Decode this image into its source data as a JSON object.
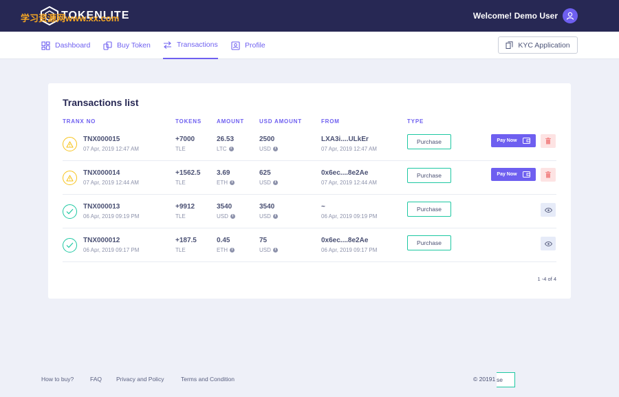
{
  "header": {
    "logo_text": "TOKENLITE",
    "watermark": "学习资源网www.xx.com",
    "welcome": "Welcome! Demo User"
  },
  "nav": {
    "items": [
      {
        "label": "Dashboard",
        "icon": "dashboard-icon"
      },
      {
        "label": "Buy Token",
        "icon": "coins-icon"
      },
      {
        "label": "Transactions",
        "icon": "transfer-icon",
        "active": true
      },
      {
        "label": "Profile",
        "icon": "user-card-icon"
      }
    ],
    "kyc_label": "KYC Application"
  },
  "transactions": {
    "title": "Transactions list",
    "columns": [
      "TRANX NO",
      "TOKENS",
      "AMOUNT",
      "USD AMOUNT",
      "FROM",
      "TYPE"
    ],
    "rows": [
      {
        "status": "pending",
        "id": "TNX000015",
        "date": "07 Apr, 2019 12:47 AM",
        "tokens": "+7000",
        "token_unit": "TLE",
        "amount": "26.53",
        "amount_unit": "LTC",
        "usd": "2500",
        "usd_unit": "USD",
        "from": "LXA3i....ULkEr",
        "from_date": "07 Apr, 2019 12:47 AM",
        "type": "Purchase",
        "pay_label": "Pay Now"
      },
      {
        "status": "pending",
        "id": "TNX000014",
        "date": "07 Apr, 2019 12:44 AM",
        "tokens": "+1562.5",
        "token_unit": "TLE",
        "amount": "3.69",
        "amount_unit": "ETH",
        "usd": "625",
        "usd_unit": "USD",
        "from": "0x6ec....8e2Ae",
        "from_date": "07 Apr, 2019 12:44 AM",
        "type": "Purchase",
        "pay_label": "Pay Now"
      },
      {
        "status": "success",
        "id": "TNX000013",
        "date": "06 Apr, 2019 09:19 PM",
        "tokens": "+9912",
        "token_unit": "TLE",
        "amount": "3540",
        "amount_unit": "USD",
        "usd": "3540",
        "usd_unit": "USD",
        "from": "~",
        "from_date": "06 Apr, 2019 09:19 PM",
        "type": "Purchase"
      },
      {
        "status": "success",
        "id": "TNX000012",
        "date": "06 Apr, 2019 09:17 PM",
        "tokens": "+187.5",
        "token_unit": "TLE",
        "amount": "0.45",
        "amount_unit": "ETH",
        "usd": "75",
        "usd_unit": "USD",
        "from": "0x6ec....8e2Ae",
        "from_date": "06 Apr, 2019 09:17 PM",
        "type": "Purchase"
      }
    ],
    "pagination": "1 -4 of 4"
  },
  "footer": {
    "links": [
      "How to buy?",
      "FAQ",
      "Privacy and Policy",
      "Terms and Condition"
    ],
    "copyright": "© 20191",
    "box_text": "se"
  },
  "colors": {
    "header_bg": "#272854",
    "accent": "#6e5ff0",
    "success": "#1cc7a1",
    "warning": "#f7c31b",
    "danger_bg": "#fde3e3"
  }
}
